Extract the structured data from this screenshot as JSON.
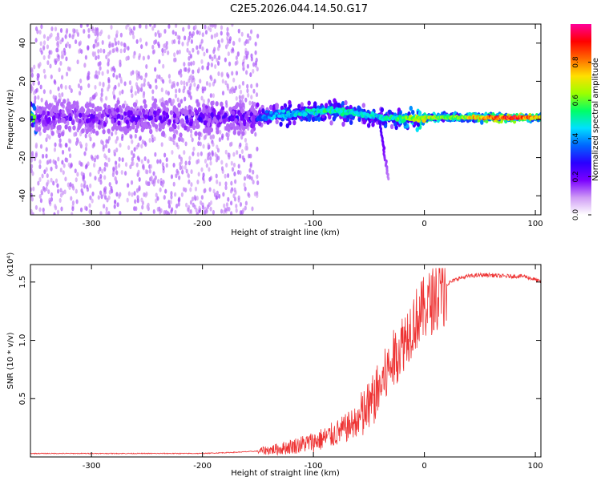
{
  "title": "C2E5.2026.044.14.50.G17",
  "chart_data": [
    {
      "type": "heatmap",
      "xlabel": "Height of straight line (km)",
      "ylabel": "Frequency (Hz)",
      "xlim": [
        -355,
        105
      ],
      "ylim": [
        -50,
        50
      ],
      "xticks": [
        -300,
        -200,
        -100,
        0,
        100
      ],
      "yticks": [
        -40,
        -20,
        0,
        20,
        40
      ],
      "colorbar": {
        "label": "Normalized spectral amplitude",
        "range": [
          0,
          1
        ],
        "ticks": [
          0.0,
          0.2,
          0.4,
          0.6,
          0.8
        ],
        "colormap": [
          "#ffffff",
          "#cf9bf5",
          "#7a00ff",
          "#2a00ff",
          "#0066ff",
          "#00e0ff",
          "#00ff66",
          "#9cff00",
          "#ffe000",
          "#ff6a00",
          "#ff0000",
          "#ff0099"
        ]
      },
      "ridge": [
        {
          "x": -350,
          "f": 1,
          "amp": 0.25
        },
        {
          "x": -300,
          "f": 1,
          "amp": 0.28
        },
        {
          "x": -250,
          "f": 1,
          "amp": 0.28
        },
        {
          "x": -200,
          "f": 1,
          "amp": 0.3
        },
        {
          "x": -160,
          "f": 1,
          "amp": 0.3
        },
        {
          "x": -140,
          "f": 2,
          "amp": 0.4
        },
        {
          "x": -120,
          "f": 3,
          "amp": 0.45
        },
        {
          "x": -100,
          "f": 4,
          "amp": 0.5
        },
        {
          "x": -80,
          "f": 5,
          "amp": 0.5
        },
        {
          "x": -60,
          "f": 3,
          "amp": 0.45
        },
        {
          "x": -40,
          "f": 1,
          "amp": 0.45
        },
        {
          "x": -20,
          "f": 0,
          "amp": 0.55
        },
        {
          "x": 0,
          "f": 1,
          "amp": 0.7
        },
        {
          "x": 20,
          "f": 1,
          "amp": 0.55
        },
        {
          "x": 50,
          "f": 1,
          "amp": 0.75
        },
        {
          "x": 80,
          "f": 1,
          "amp": 0.9
        },
        {
          "x": 105,
          "f": 1,
          "amp": 0.7
        }
      ]
    },
    {
      "type": "line",
      "xlabel": "Height of straight line (km)",
      "ylabel": "SNR (10 * v/v)",
      "scale_label": "(x10⁴)",
      "xlim": [
        -355,
        105
      ],
      "ylim": [
        0,
        1.65
      ],
      "xticks": [
        -300,
        -200,
        -100,
        0,
        100
      ],
      "yticks": [
        0.5,
        1.0,
        1.5
      ],
      "color": "#ee3333",
      "series": [
        {
          "x": [
            -355,
            -300,
            -250,
            -200,
            -170,
            -150,
            -130,
            -120,
            -110,
            -100,
            -90,
            -80,
            -70,
            -60,
            -50,
            -40,
            -30,
            -20,
            -10,
            0,
            10,
            20,
            30,
            40,
            50,
            60,
            70,
            80,
            90,
            100,
            105
          ],
          "y": [
            0.03,
            0.03,
            0.03,
            0.03,
            0.04,
            0.05,
            0.07,
            0.09,
            0.11,
            0.13,
            0.16,
            0.2,
            0.25,
            0.32,
            0.45,
            0.62,
            0.82,
            1.0,
            1.18,
            1.3,
            1.4,
            1.48,
            1.53,
            1.55,
            1.56,
            1.56,
            1.55,
            1.55,
            1.55,
            1.52,
            1.5
          ]
        }
      ]
    }
  ]
}
